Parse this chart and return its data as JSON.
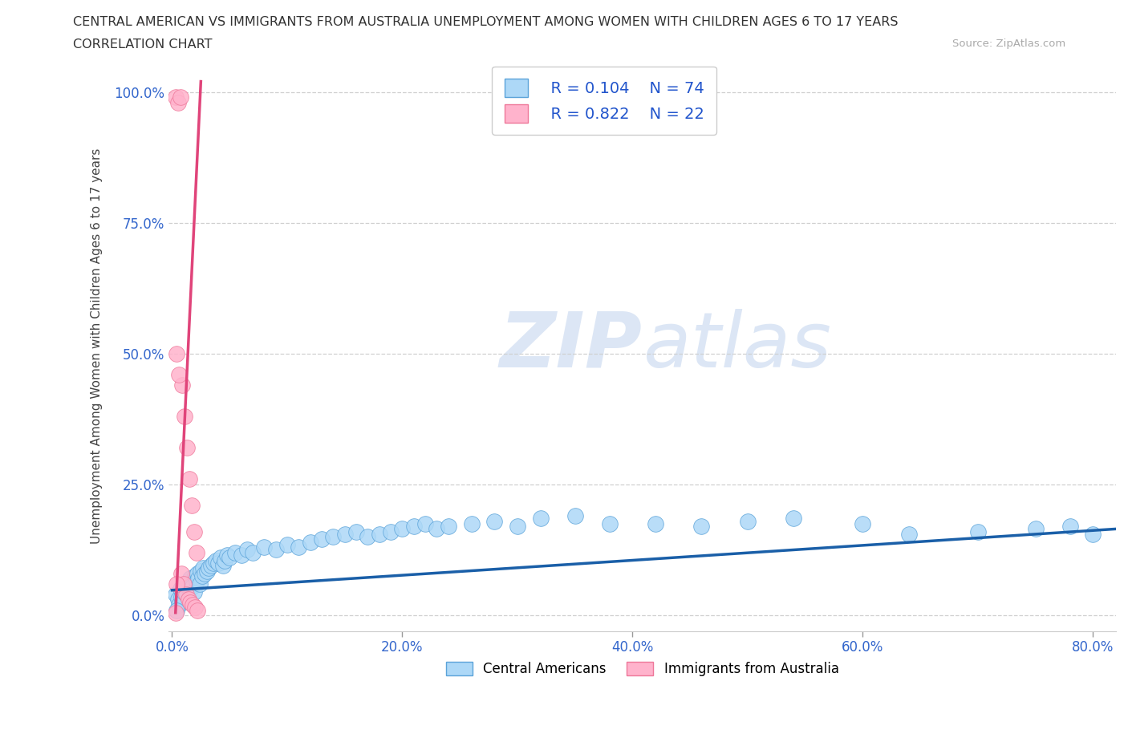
{
  "title_line1": "CENTRAL AMERICAN VS IMMIGRANTS FROM AUSTRALIA UNEMPLOYMENT AMONG WOMEN WITH CHILDREN AGES 6 TO 17 YEARS",
  "title_line2": "CORRELATION CHART",
  "source_text": "Source: ZipAtlas.com",
  "ylabel": "Unemployment Among Women with Children Ages 6 to 17 years",
  "xlim": [
    -0.003,
    0.82
  ],
  "ylim": [
    -0.03,
    1.06
  ],
  "xticks": [
    0.0,
    0.2,
    0.4,
    0.6,
    0.8
  ],
  "xticklabels": [
    "0.0%",
    "20.0%",
    "40.0%",
    "60.0%",
    "80.0%"
  ],
  "yticks": [
    0.0,
    0.25,
    0.5,
    0.75,
    1.0
  ],
  "yticklabels": [
    "0.0%",
    "25.0%",
    "50.0%",
    "75.0%",
    "100.0%"
  ],
  "blue_color": "#add8f7",
  "blue_edge": "#5ba3d9",
  "pink_color": "#ffb3cc",
  "pink_edge": "#ee7799",
  "blue_line_color": "#1a5fa8",
  "pink_line_color": "#e0447a",
  "grid_color": "#d0d0d0",
  "watermark_color": "#dce6f5",
  "legend_r1": "R = 0.104",
  "legend_n1": "N = 74",
  "legend_r2": "R = 0.822",
  "legend_n2": "N = 22",
  "legend_label1": "Central Americans",
  "legend_label2": "Immigrants from Australia",
  "blue_x": [
    0.003,
    0.005,
    0.006,
    0.007,
    0.008,
    0.009,
    0.01,
    0.011,
    0.012,
    0.013,
    0.014,
    0.015,
    0.016,
    0.017,
    0.018,
    0.019,
    0.02,
    0.021,
    0.022,
    0.023,
    0.024,
    0.025,
    0.026,
    0.027,
    0.028,
    0.03,
    0.032,
    0.034,
    0.036,
    0.038,
    0.04,
    0.042,
    0.044,
    0.046,
    0.048,
    0.05,
    0.055,
    0.06,
    0.065,
    0.07,
    0.08,
    0.09,
    0.1,
    0.11,
    0.12,
    0.13,
    0.14,
    0.15,
    0.16,
    0.17,
    0.18,
    0.19,
    0.2,
    0.21,
    0.22,
    0.23,
    0.24,
    0.26,
    0.28,
    0.3,
    0.32,
    0.35,
    0.38,
    0.42,
    0.46,
    0.5,
    0.54,
    0.6,
    0.64,
    0.7,
    0.75,
    0.78,
    0.8,
    0.004
  ],
  "blue_y": [
    0.04,
    0.03,
    0.02,
    0.05,
    0.035,
    0.025,
    0.045,
    0.06,
    0.055,
    0.04,
    0.065,
    0.05,
    0.07,
    0.06,
    0.055,
    0.045,
    0.075,
    0.065,
    0.08,
    0.07,
    0.06,
    0.085,
    0.075,
    0.09,
    0.08,
    0.085,
    0.09,
    0.095,
    0.1,
    0.105,
    0.1,
    0.11,
    0.095,
    0.105,
    0.115,
    0.11,
    0.12,
    0.115,
    0.125,
    0.12,
    0.13,
    0.125,
    0.135,
    0.13,
    0.14,
    0.145,
    0.15,
    0.155,
    0.16,
    0.15,
    0.155,
    0.16,
    0.165,
    0.17,
    0.175,
    0.165,
    0.17,
    0.175,
    0.18,
    0.17,
    0.185,
    0.19,
    0.175,
    0.175,
    0.17,
    0.18,
    0.185,
    0.175,
    0.155,
    0.16,
    0.165,
    0.17,
    0.155,
    0.01
  ],
  "pink_x": [
    0.003,
    0.005,
    0.007,
    0.009,
    0.011,
    0.013,
    0.015,
    0.017,
    0.019,
    0.021,
    0.004,
    0.006,
    0.008,
    0.01,
    0.012,
    0.014,
    0.016,
    0.018,
    0.02,
    0.022,
    0.003,
    0.004
  ],
  "pink_y": [
    0.99,
    0.98,
    0.99,
    0.44,
    0.38,
    0.32,
    0.26,
    0.21,
    0.16,
    0.12,
    0.5,
    0.46,
    0.08,
    0.06,
    0.04,
    0.03,
    0.025,
    0.02,
    0.015,
    0.01,
    0.005,
    0.06
  ],
  "blue_trend_x": [
    0.0,
    0.82
  ],
  "blue_trend_y": [
    0.048,
    0.165
  ],
  "pink_trend_x": [
    0.003,
    0.025
  ],
  "pink_trend_y": [
    0.005,
    1.02
  ]
}
